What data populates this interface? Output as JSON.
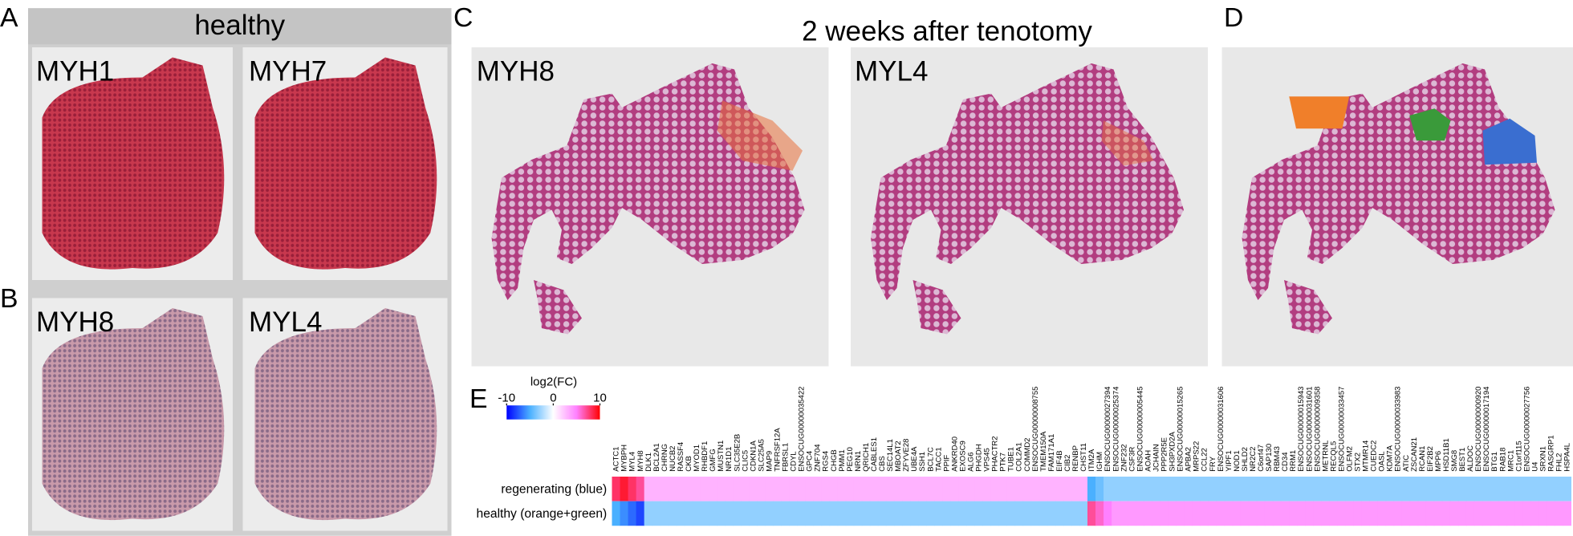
{
  "panel_labels": [
    "A",
    "B",
    "C",
    "D",
    "E"
  ],
  "healthy": {
    "title": "healthy",
    "images": [
      "MYH1",
      "MYH7",
      "MYH8",
      "MYL4"
    ]
  },
  "tenotomy": {
    "title": "2 weeks after tenotomy",
    "images": [
      "MYH8",
      "MYL4"
    ]
  },
  "heatmap": {
    "type": "heatmap",
    "colorbar": {
      "title": "log2(FC)",
      "lim": [
        -10,
        10
      ],
      "ticks": [
        -10,
        0,
        10
      ],
      "colors": [
        "#0000ff",
        "#4ab0ff",
        "#ffffff",
        "#ff80ff",
        "#ff0000"
      ]
    },
    "genes": [
      "ACTC1",
      "MYBPH",
      "MYL4",
      "MYH8",
      "DLK1",
      "BCL2A1",
      "CHRNG",
      "NUCB2",
      "RASSF4",
      "CKB",
      "MYOD1",
      "RHBDF1",
      "GMFG",
      "MUSTN1",
      "NR1D1",
      "SLC35E2B",
      "CLIC5",
      "CDKN1A",
      "SLC25A5",
      "MAP9",
      "TNFRSF12A",
      "FBRSL1",
      "CDYL",
      "ENSOCUG00000035422",
      "GPC4",
      "ZNF704",
      "RGS4",
      "CHGB",
      "PMM1",
      "PEG10",
      "NRN1",
      "QRICH1",
      "CABLES1",
      "CBS",
      "SEC14L1",
      "MBOAT2",
      "ZFYVE28",
      "UBE4A",
      "SSH1",
      "BCL7C",
      "TACC1",
      "PPIF",
      "ANKRD40",
      "EXOSC9",
      "ALG6",
      "PHGDH",
      "VPS45",
      "PHACTR2",
      "PTK7",
      "TUBE1",
      "COL2A1",
      "COMMD2",
      "ENSOCUG00000008755",
      "TMEM150A",
      "FAM171A1",
      "EIF4B",
      "CIB2",
      "RENBP",
      "CHST11",
      "ITM2A",
      "IGHM",
      "ENSOCUG00000027394",
      "ENSOCUG00000025374",
      "ZNF232",
      "CSF3R",
      "ENSOCUG00000005445",
      "AOAH",
      "JCHAIN",
      "PPP2R5E",
      "SH3PXD2A",
      "ENSOCUG00000015265",
      "APBA2",
      "MRPS22",
      "CCL22",
      "FRY",
      "ENSOCUG00000031606",
      "YIPF1",
      "NOD1",
      "SHLD2",
      "NR2C2",
      "C6orf47",
      "SAP130",
      "RBM43",
      "CD34",
      "RRM1",
      "ENSOCUG00000015943",
      "ENSOCUG00000031601",
      "ENSOCUG00000009358",
      "METRNL",
      "RECQL5",
      "ENSOCUG00000033457",
      "OLFM2",
      "STX2",
      "MTMR14",
      "CUEDC2",
      "OASL",
      "KDM7A",
      "ENSOCUG00000033983",
      "ATIC",
      "ZSCAN21",
      "RCAN1",
      "EIF2B2",
      "MPP6",
      "HSD11B1",
      "SMG8",
      "BEST1",
      "ALDOC",
      "ENSOCUG00000000920",
      "ENSOCUG00000017194",
      "BTG1",
      "RAB18",
      "MRC1",
      "C1orf115",
      "ENSOCUG00000027756",
      "U4",
      "SRXN1",
      "RASGRP1",
      "FHL2",
      "HSPA4L"
    ],
    "series": [
      {
        "name": "regenerating (blue)",
        "values": [
          8,
          9,
          8,
          7,
          3,
          3,
          3,
          3,
          3,
          3,
          3,
          3,
          3,
          3,
          3,
          3,
          3,
          3,
          3,
          3,
          3,
          3,
          3,
          3,
          3,
          3,
          3,
          3,
          3,
          3,
          3,
          3,
          3,
          3,
          3,
          3,
          3,
          3,
          3,
          3,
          3,
          3,
          3,
          3,
          3,
          3,
          3,
          3,
          3,
          3,
          3,
          3,
          3,
          3,
          3,
          3,
          3,
          3,
          3,
          -5,
          -4,
          -3,
          -3,
          -3,
          -3,
          -3,
          -3,
          -3,
          -3,
          -3,
          -3,
          -3,
          -3,
          -3,
          -3,
          -3,
          -3,
          -3,
          -3,
          -3,
          -3,
          -3,
          -3,
          -3,
          -3,
          -3,
          -3,
          -3,
          -3,
          -3,
          -3,
          -3,
          -3,
          -3,
          -3,
          -3,
          -3,
          -3,
          -3,
          -3,
          -3,
          -3,
          -3,
          -3,
          -3,
          -3,
          -3,
          -3,
          -3,
          -3,
          -3,
          -3,
          -3,
          -3,
          -3,
          -3,
          -3,
          -3,
          -3
        ]
      },
      {
        "name": "healthy (orange+green)",
        "values": [
          -5,
          -6,
          -7,
          -8,
          -3,
          -3,
          -3,
          -3,
          -3,
          -3,
          -3,
          -3,
          -3,
          -3,
          -3,
          -3,
          -3,
          -3,
          -3,
          -3,
          -3,
          -3,
          -3,
          -3,
          -3,
          -3,
          -3,
          -3,
          -3,
          -3,
          -3,
          -3,
          -3,
          -3,
          -3,
          -3,
          -3,
          -3,
          -3,
          -3,
          -3,
          -3,
          -3,
          -3,
          -3,
          -3,
          -3,
          -3,
          -3,
          -3,
          -3,
          -3,
          -3,
          -3,
          -3,
          -3,
          -3,
          -3,
          -3,
          7,
          6,
          5,
          4,
          4,
          4,
          4,
          4,
          4,
          4,
          4,
          4,
          4,
          4,
          4,
          4,
          4,
          4,
          4,
          4,
          4,
          4,
          4,
          4,
          4,
          4,
          4,
          4,
          4,
          4,
          4,
          4,
          4,
          4,
          4,
          4,
          4,
          4,
          4,
          4,
          4,
          4,
          4,
          4,
          4,
          4,
          4,
          4,
          4,
          4,
          4,
          4,
          4,
          4,
          4,
          4,
          4,
          4,
          4,
          4
        ]
      }
    ]
  }
}
